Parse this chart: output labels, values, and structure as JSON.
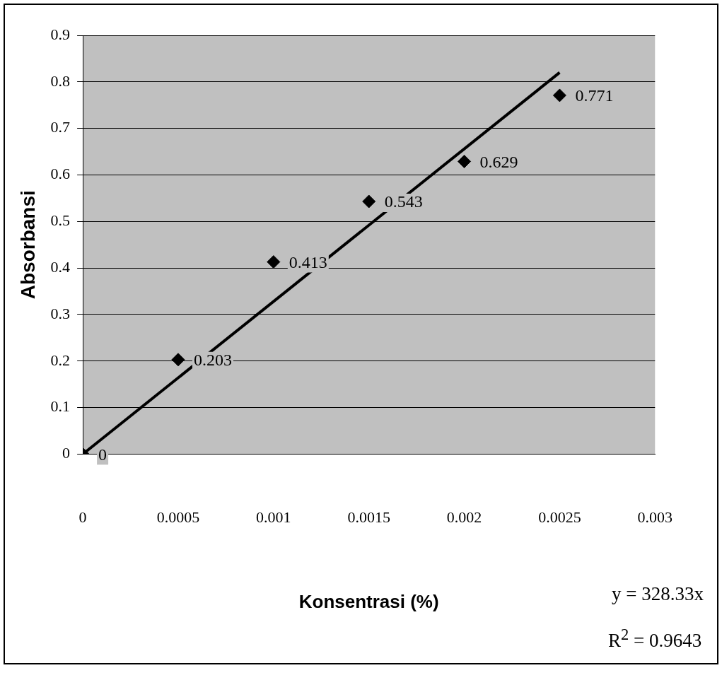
{
  "chart_data": {
    "type": "scatter",
    "xlabel": "Konsentrasi (%)",
    "ylabel": "Absorbansi",
    "xlim": [
      0,
      0.003
    ],
    "xticks": [
      0,
      0.0005,
      0.001,
      0.0015,
      0.002,
      0.0025,
      0.003
    ],
    "ylim": [
      0,
      0.9
    ],
    "yticks": [
      0,
      0.1,
      0.2,
      0.3,
      0.4,
      0.5,
      0.6,
      0.7,
      0.8,
      0.9
    ],
    "grid": "y",
    "series": [
      {
        "color": "#000000",
        "marker": "diamond",
        "x": [
          0,
          0.0005,
          0.001,
          0.0015,
          0.002,
          0.0025
        ],
        "values": [
          0,
          0.203,
          0.413,
          0.543,
          0.629,
          0.771
        ],
        "value_labels": [
          "0",
          "0.203",
          "0.413",
          "0.543",
          "0.629",
          "0.771"
        ]
      },
      {
        "type": "line",
        "color": "#000000",
        "marker": "none",
        "x": [
          0,
          0.0025
        ],
        "values": [
          0,
          0.82
        ]
      }
    ],
    "annotations": [
      "y = 328.33x",
      "R$^{2}$ = 0.9643"
    ]
  }
}
